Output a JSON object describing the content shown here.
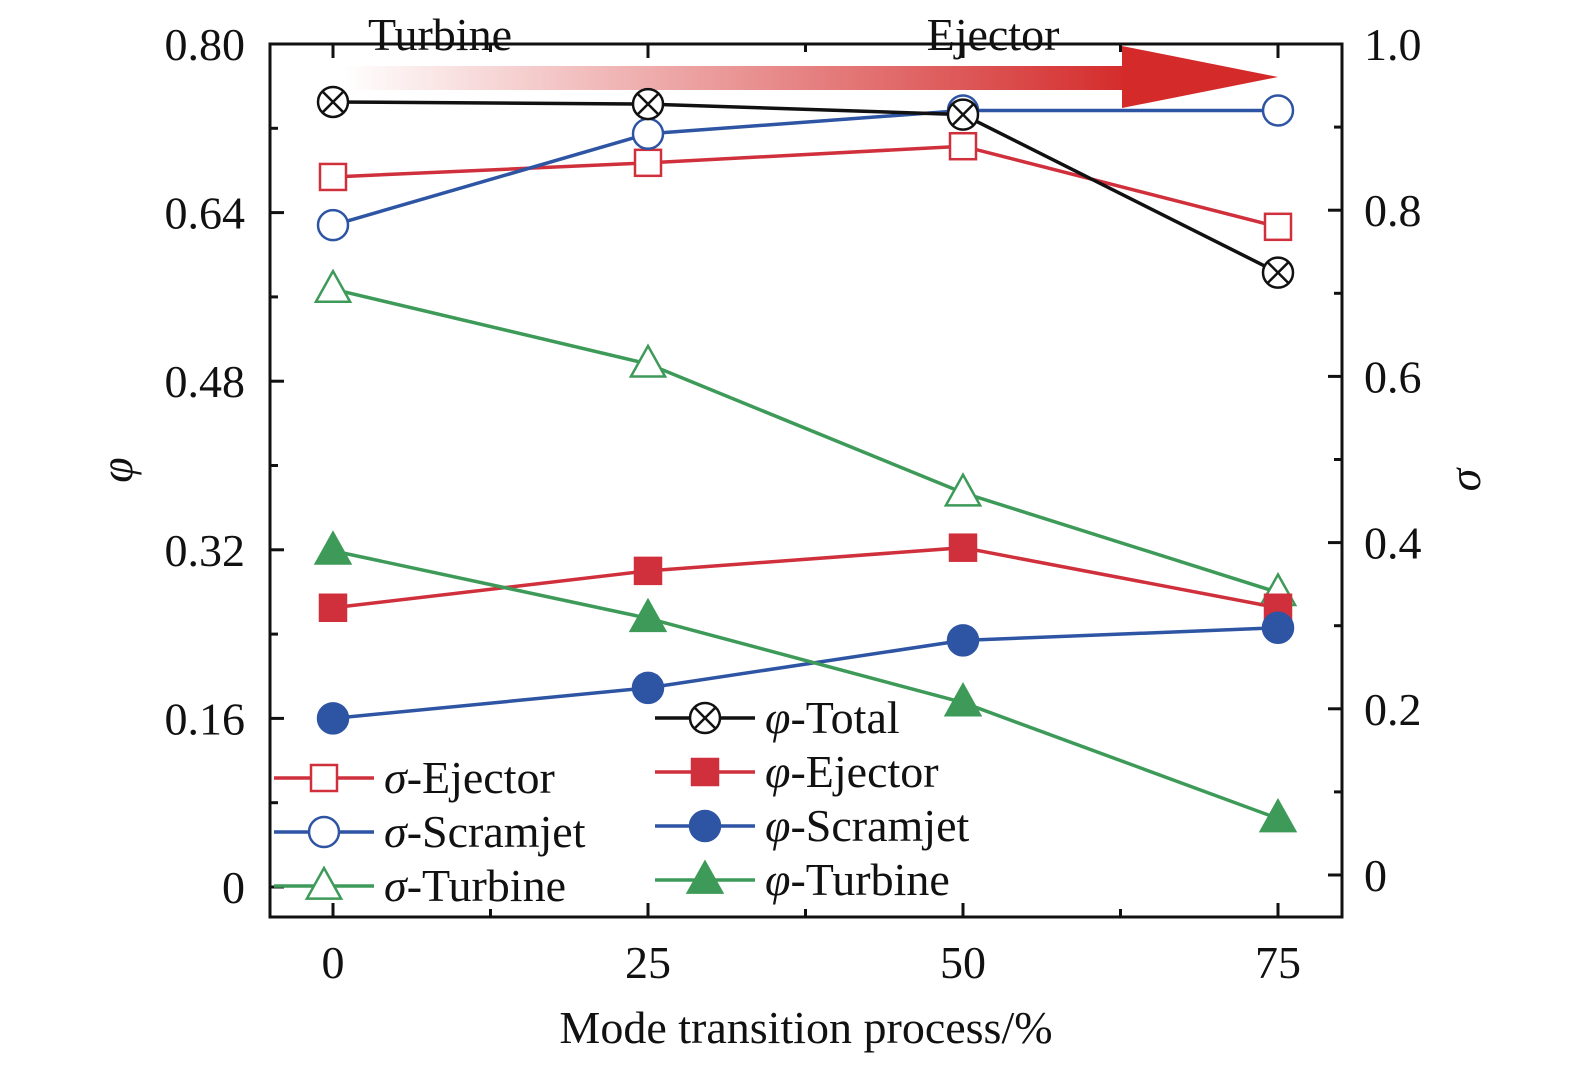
{
  "chart_data": {
    "type": "line",
    "xlabel": "Mode transition process/%",
    "ylabel_left": "φ",
    "ylabel_right": "σ",
    "x": [
      0,
      25,
      50,
      75
    ],
    "x_ticks": [
      "0",
      "25",
      "50",
      "75"
    ],
    "ylim_left": [
      0,
      0.8
    ],
    "left_ticks": [
      "0",
      "0.16",
      "0.32",
      "0.48",
      "0.64",
      "0.80"
    ],
    "left_tick_values": [
      0,
      0.16,
      0.32,
      0.48,
      0.64,
      0.8
    ],
    "ylim_right": [
      0,
      1.0
    ],
    "right_ticks": [
      "0",
      "0.2",
      "0.4",
      "0.6",
      "0.8",
      "1.0"
    ],
    "right_tick_values": [
      0,
      0.2,
      0.4,
      0.6,
      0.8,
      1.0
    ],
    "annotations": {
      "start": "Turbine",
      "end": "Ejector"
    },
    "series": [
      {
        "id": "phi-total",
        "sym": "φ",
        "label": "-Total",
        "axis": "left",
        "color": "#111111",
        "marker": "circle-x",
        "filled": false,
        "values": [
          0.745,
          0.743,
          0.733,
          0.583
        ]
      },
      {
        "id": "sigma-ejector",
        "sym": "σ",
        "label": "-Ejector",
        "axis": "right",
        "color": "#d0303c",
        "marker": "square",
        "filled": false,
        "values": [
          0.84,
          0.857,
          0.877,
          0.78
        ]
      },
      {
        "id": "sigma-scramjet",
        "sym": "σ",
        "label": "-Scramjet",
        "axis": "right",
        "color": "#2e54a4",
        "marker": "circle",
        "filled": false,
        "values": [
          0.782,
          0.892,
          0.92,
          0.92
        ]
      },
      {
        "id": "sigma-turbine",
        "sym": "σ",
        "label": "-Turbine",
        "axis": "right",
        "color": "#3e9a58",
        "marker": "triangle",
        "filled": false,
        "values": [
          0.705,
          0.615,
          0.46,
          0.34
        ]
      },
      {
        "id": "phi-ejector",
        "sym": "φ",
        "label": "-Ejector",
        "axis": "left",
        "color": "#d0303c",
        "marker": "square",
        "filled": true,
        "values": [
          0.265,
          0.3,
          0.322,
          0.265
        ]
      },
      {
        "id": "phi-scramjet",
        "sym": "φ",
        "label": "-Scramjet",
        "axis": "left",
        "color": "#2e54a4",
        "marker": "circle",
        "filled": true,
        "values": [
          0.16,
          0.189,
          0.234,
          0.246
        ]
      },
      {
        "id": "phi-turbine",
        "sym": "φ",
        "label": "-Turbine",
        "axis": "left",
        "color": "#3e9a58",
        "marker": "triangle",
        "filled": true,
        "values": [
          0.319,
          0.255,
          0.175,
          0.065
        ]
      }
    ],
    "legend_order": [
      "phi-total",
      "sigma-ejector",
      "phi-ejector",
      "sigma-scramjet",
      "phi-scramjet",
      "sigma-turbine",
      "phi-turbine"
    ]
  },
  "colors": {
    "arrow_start": "#ffffff",
    "arrow_end": "#d42a2a",
    "axis": "#111111"
  }
}
